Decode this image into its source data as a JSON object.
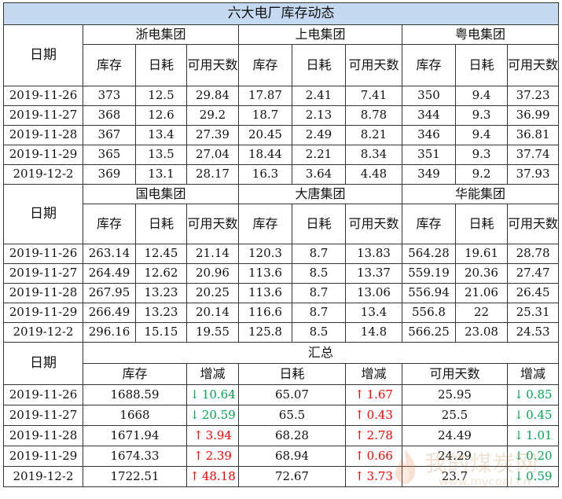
{
  "title": "六大电厂库存动态",
  "date_label": "日期",
  "col_labels": {
    "stock": "库存",
    "consumption": "日耗",
    "days": "可用天数"
  },
  "group_rows": [
    {
      "groups": [
        {
          "name": "浙电集团",
          "rows": [
            [
              "373",
              "12.5",
              "29.84"
            ],
            [
              "368",
              "12.6",
              "29.2"
            ],
            [
              "367",
              "13.4",
              "27.39"
            ],
            [
              "365",
              "13.5",
              "27.04"
            ],
            [
              "369",
              "13.1",
              "28.17"
            ]
          ]
        },
        {
          "name": "上电集团",
          "rows": [
            [
              "17.87",
              "2.41",
              "7.41"
            ],
            [
              "18.7",
              "2.13",
              "8.78"
            ],
            [
              "20.45",
              "2.49",
              "8.21"
            ],
            [
              "18.44",
              "2.21",
              "8.34"
            ],
            [
              "16.3",
              "3.64",
              "4.48"
            ]
          ]
        },
        {
          "name": "粤电集团",
          "rows": [
            [
              "350",
              "9.4",
              "37.23"
            ],
            [
              "344",
              "9.3",
              "36.99"
            ],
            [
              "346",
              "9.4",
              "36.81"
            ],
            [
              "351",
              "9.3",
              "37.74"
            ],
            [
              "349",
              "9.2",
              "37.93"
            ]
          ]
        }
      ]
    },
    {
      "groups": [
        {
          "name": "国电集团",
          "rows": [
            [
              "263.14",
              "12.45",
              "21.14"
            ],
            [
              "264.49",
              "12.62",
              "20.96"
            ],
            [
              "267.95",
              "13.23",
              "20.25"
            ],
            [
              "266.49",
              "13.23",
              "20.14"
            ],
            [
              "296.16",
              "15.15",
              "19.55"
            ]
          ]
        },
        {
          "name": "大唐集团",
          "rows": [
            [
              "120.3",
              "8.7",
              "13.83"
            ],
            [
              "113.6",
              "8.5",
              "13.37"
            ],
            [
              "113.6",
              "8.7",
              "13.06"
            ],
            [
              "116.6",
              "8.7",
              "13.4"
            ],
            [
              "125.8",
              "8.5",
              "14.8"
            ]
          ]
        },
        {
          "name": "华能集团",
          "rows": [
            [
              "564.28",
              "19.61",
              "28.78"
            ],
            [
              "559.19",
              "20.36",
              "27.47"
            ],
            [
              "556.94",
              "21.06",
              "26.45"
            ],
            [
              "556.8",
              "22",
              "25.31"
            ],
            [
              "566.25",
              "23.08",
              "24.53"
            ]
          ]
        }
      ]
    }
  ],
  "dates": [
    "2019-11-26",
    "2019-11-27",
    "2019-11-28",
    "2019-11-29",
    "2019-12-2"
  ],
  "summary": {
    "title": "汇总",
    "col_labels": [
      "库存",
      "增减",
      "日耗",
      "增减",
      "可用天数",
      "增减"
    ],
    "rows": [
      {
        "stock": "1688.59",
        "stock_chg": "10.64",
        "stock_dir": "down",
        "cons": "65.07",
        "cons_chg": "1.67",
        "cons_dir": "up",
        "days": "25.95",
        "days_chg": "0.85",
        "days_dir": "down"
      },
      {
        "stock": "1668",
        "stock_chg": "20.59",
        "stock_dir": "down",
        "cons": "65.5",
        "cons_chg": "0.43",
        "cons_dir": "up",
        "days": "25.5",
        "days_chg": "0.45",
        "days_dir": "down"
      },
      {
        "stock": "1671.94",
        "stock_chg": "3.94",
        "stock_dir": "up",
        "cons": "68.28",
        "cons_chg": "2.78",
        "cons_dir": "up",
        "days": "24.49",
        "days_chg": "1.01",
        "days_dir": "down"
      },
      {
        "stock": "1674.33",
        "stock_chg": "2.39",
        "stock_dir": "up",
        "cons": "68.94",
        "cons_chg": "0.66",
        "cons_dir": "up",
        "days": "24.29",
        "days_chg": "0.20",
        "days_dir": "down"
      },
      {
        "stock": "1722.51",
        "stock_chg": "48.18",
        "stock_dir": "up",
        "cons": "72.67",
        "cons_chg": "3.73",
        "cons_dir": "up",
        "days": "23.7",
        "days_chg": "0.59",
        "days_dir": "down"
      }
    ]
  },
  "colors": {
    "title_bg": "#c5d9f1",
    "up": "#ff0000",
    "down": "#00a651"
  },
  "watermark": {
    "cn": "我的煤炭网",
    "url": "www.mycoal.cn"
  }
}
